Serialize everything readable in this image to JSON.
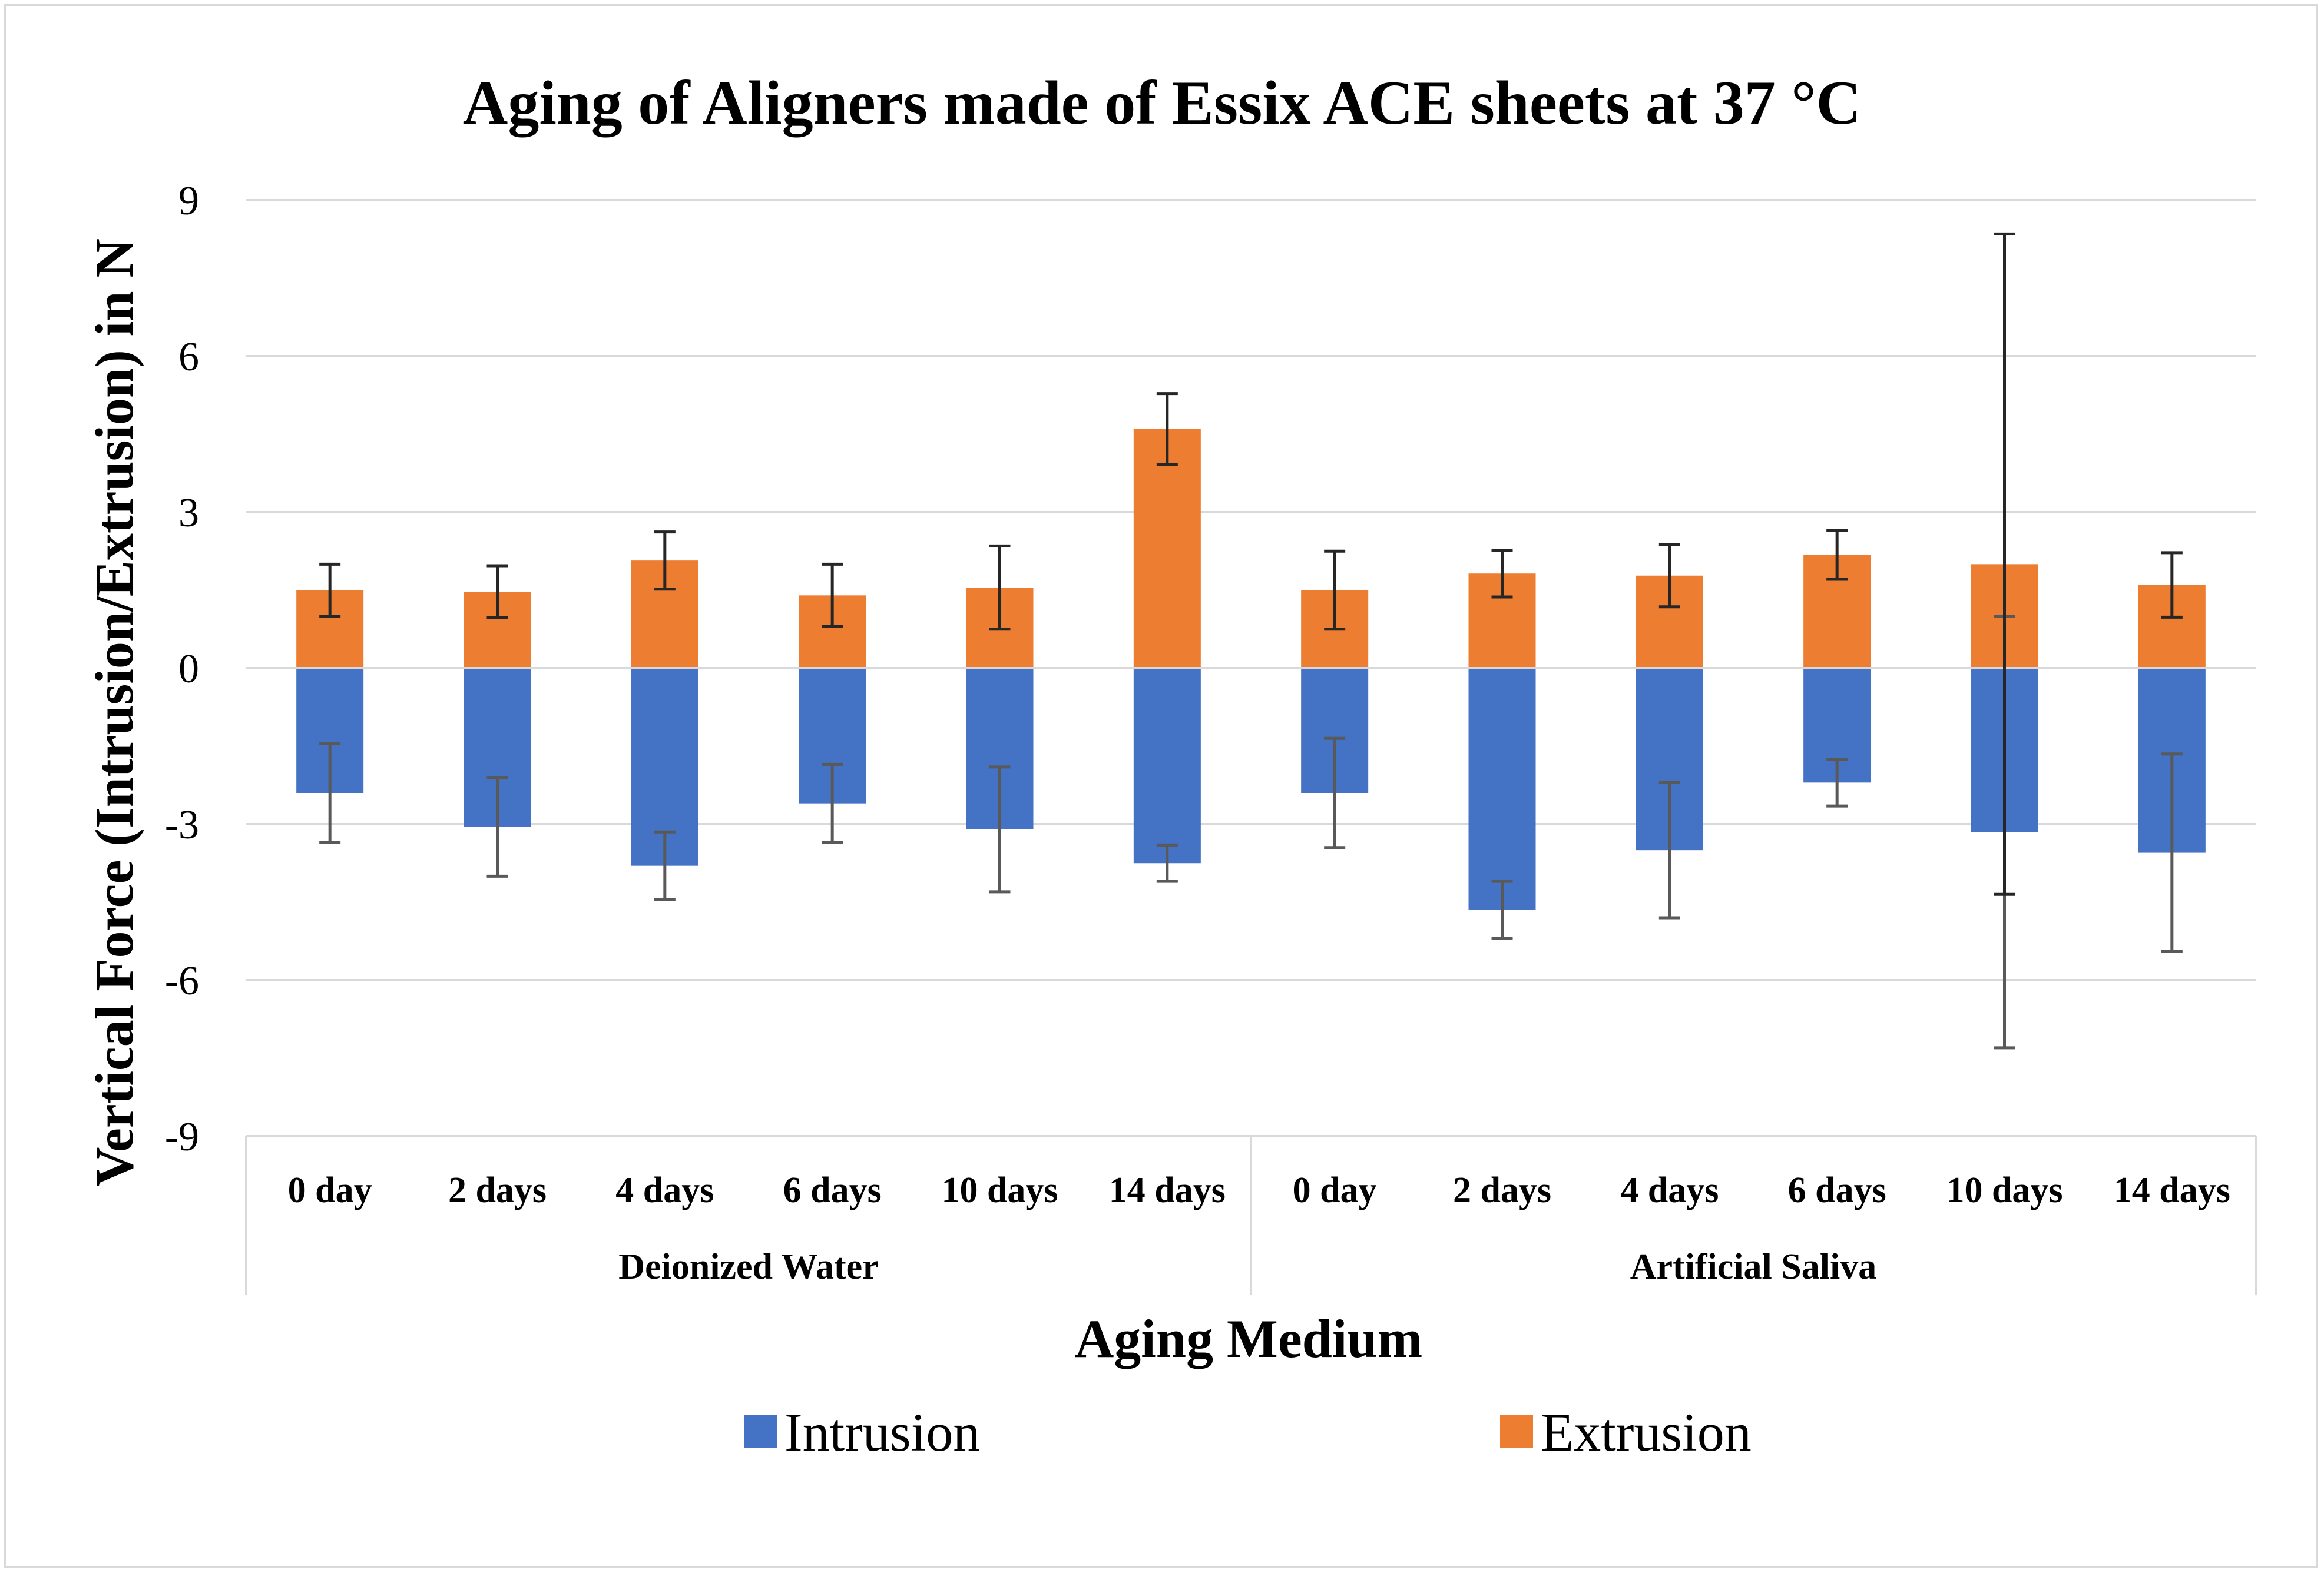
{
  "chart_data": {
    "type": "bar",
    "title": "Aging of Aligners made of Essix ACE sheets at 37 °C",
    "xlabel": "Aging Medium",
    "ylabel": "Vertical Force (Intrusion/Extrusion) in N",
    "ylim": [
      -9,
      9
    ],
    "yticks": [
      9,
      6,
      3,
      0,
      -3,
      -6,
      -9
    ],
    "grid": true,
    "legend_position": "bottom",
    "groups": [
      {
        "name": "Deionized Water",
        "categories": [
          "0 day",
          "2 days",
          "4 days",
          "6 days",
          "10 days",
          "14 days"
        ]
      },
      {
        "name": "Artificial Saliva",
        "categories": [
          "0 day",
          "2 days",
          "4 days",
          "6 days",
          "10 days",
          "14 days"
        ]
      }
    ],
    "series": [
      {
        "name": "Intrusion",
        "color": "#4472c4",
        "values": [
          -2.4,
          -3.05,
          -3.8,
          -2.6,
          -3.1,
          -3.75,
          -2.4,
          -4.65,
          -3.5,
          -2.2,
          -3.15,
          -3.55
        ],
        "errors": [
          0.95,
          0.95,
          0.65,
          0.75,
          1.2,
          0.35,
          1.05,
          0.55,
          1.3,
          0.45,
          4.15,
          1.9
        ],
        "error_color": "#595959"
      },
      {
        "name": "Extrusion",
        "color": "#ed7d31",
        "values": [
          1.5,
          1.47,
          2.07,
          1.4,
          1.55,
          4.6,
          1.5,
          1.82,
          1.78,
          2.18,
          2.0,
          1.6
        ],
        "errors": [
          0.5,
          0.5,
          0.55,
          0.6,
          0.8,
          0.68,
          0.75,
          0.45,
          0.6,
          0.47,
          6.35,
          0.62
        ],
        "error_color": "#262626"
      }
    ]
  }
}
